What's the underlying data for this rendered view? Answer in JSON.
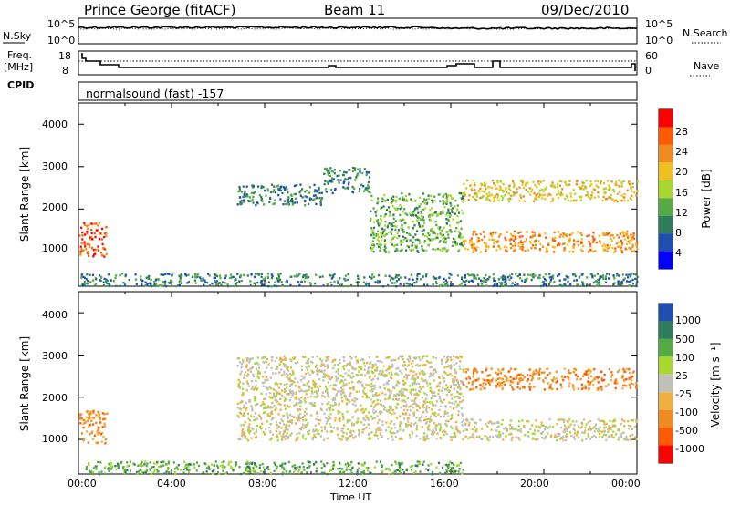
{
  "header": {
    "station": "Prince George (fitACF)",
    "beam": "Beam 11",
    "date": "09/Dec/2010"
  },
  "noise_panel": {
    "left_label": "N.Sky",
    "left_ticks": [
      "10^5",
      "10^0"
    ],
    "right_label": "N.Search",
    "right_ticks": [
      "10^5",
      "10^0"
    ]
  },
  "freq_panel": {
    "left_label_1": "Freq.",
    "left_label_2": "[MHz]",
    "left_ticks": [
      "18",
      "8"
    ],
    "right_label": "Nave",
    "right_ticks": [
      "60",
      "0"
    ],
    "cpid_label": "CPID"
  },
  "cpid_text": "normalsound (fast) -157",
  "power_panel": {
    "ylabel": "Slant Range [km]",
    "yticks": [
      "4000",
      "3000",
      "2000",
      "1000"
    ],
    "colorbar_label": "Power [dB]",
    "colorbar_ticks": [
      "28",
      "24",
      "20",
      "16",
      "12",
      "8",
      "4"
    ]
  },
  "velocity_panel": {
    "ylabel": "Slant Range [km]",
    "yticks": [
      "4000",
      "3000",
      "2000",
      "1000"
    ],
    "colorbar_label": "Velocity [m s⁻¹]",
    "colorbar_ticks": [
      "1000",
      "500",
      "100",
      "25",
      "-25",
      "-100",
      "-500",
      "-1000"
    ]
  },
  "xaxis": {
    "ticks": [
      "00:00",
      "04:00",
      "08:00",
      "12:00",
      "16:00",
      "20:00",
      "00:00"
    ],
    "label": "Time UT"
  },
  "colors": {
    "power_scale": [
      "#0000ff",
      "#1e50b4",
      "#2e7d5a",
      "#55aa44",
      "#a8d830",
      "#f0c020",
      "#f08c1e",
      "#ff5a00",
      "#ff0000"
    ],
    "velocity_scale": [
      "#1e50b4",
      "#2e7d5a",
      "#55aa44",
      "#a8d830",
      "#c0c0b8",
      "#f0b040",
      "#f08c1e",
      "#ff5a00",
      "#ff0000"
    ]
  },
  "chart_data": [
    {
      "type": "heatmap",
      "title": "Power",
      "ylabel": "Slant Range [km]",
      "ylim": [
        180,
        4500
      ],
      "xlim_hours": [
        0,
        24
      ],
      "colorbar_units": "Power [dB]",
      "features": [
        {
          "t_start": 0.0,
          "t_end": 1.2,
          "range_km": [
            900,
            1700
          ],
          "power_db": 26
        },
        {
          "t_start": 6.8,
          "t_end": 10.5,
          "range_km": [
            2100,
            2600
          ],
          "power_db": 8
        },
        {
          "t_start": 10.5,
          "t_end": 12.5,
          "range_km": [
            2400,
            3000
          ],
          "power_db": 8
        },
        {
          "t_start": 12.5,
          "t_end": 16.5,
          "range_km": [
            1000,
            2400
          ],
          "power_db": 10
        },
        {
          "t_start": 16.5,
          "t_end": 24.0,
          "range_km": [
            1000,
            1500
          ],
          "power_db": 22
        },
        {
          "t_start": 16.5,
          "t_end": 24.0,
          "range_km": [
            2200,
            2700
          ],
          "power_db": 20
        },
        {
          "t_start": 0.0,
          "t_end": 24.0,
          "range_km": [
            200,
            500
          ],
          "power_db": 6
        }
      ]
    },
    {
      "type": "heatmap",
      "title": "Velocity",
      "ylabel": "Slant Range [km]",
      "ylim": [
        180,
        4500
      ],
      "xlim_hours": [
        0,
        24
      ],
      "colorbar_units": "Velocity [m s⁻¹]",
      "features": [
        {
          "t_start": 0.0,
          "t_end": 1.2,
          "range_km": [
            900,
            1700
          ],
          "velocity": -100
        },
        {
          "t_start": 6.8,
          "t_end": 16.5,
          "range_km": [
            1000,
            3000
          ],
          "velocity": 0
        },
        {
          "t_start": 16.5,
          "t_end": 24.0,
          "range_km": [
            2200,
            2700
          ],
          "velocity": -300
        },
        {
          "t_start": 16.5,
          "t_end": 24.0,
          "range_km": [
            1000,
            1500
          ],
          "velocity": 0
        },
        {
          "t_start": 0.0,
          "t_end": 16.5,
          "range_km": [
            200,
            500
          ],
          "velocity": 60
        }
      ]
    }
  ]
}
